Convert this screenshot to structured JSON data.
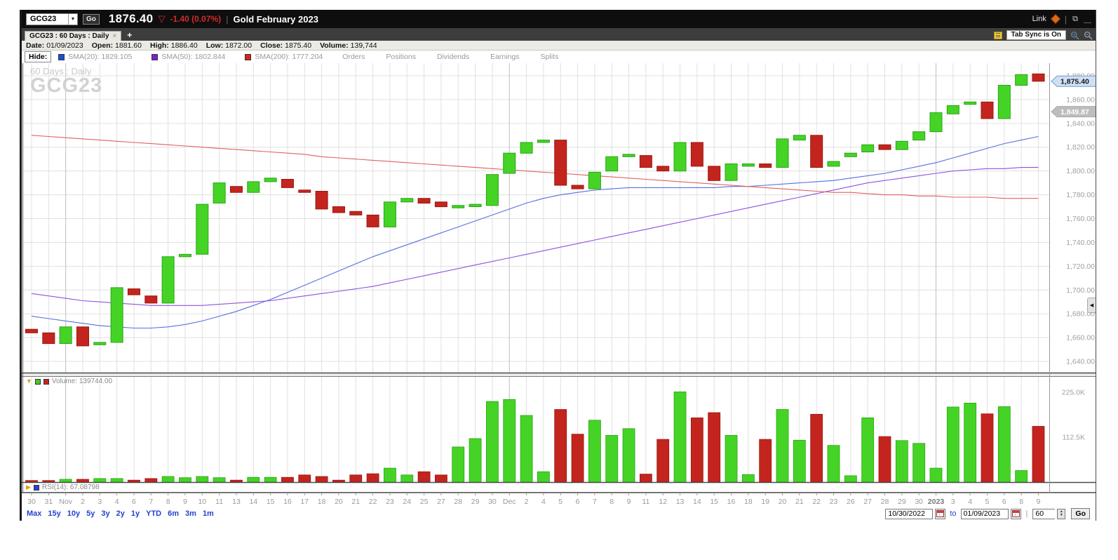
{
  "title_bar": {
    "symbol": "GCG23",
    "go_label": "Go",
    "price": "1876.40",
    "down_glyph": "▽",
    "change": "-1.40 (0.07%)",
    "name": "Gold February 2023",
    "link_label": "Link"
  },
  "tab_bar": {
    "tab_label": "GCG23 : 60  Days : Daily",
    "close_glyph": "×",
    "add_label": "+",
    "sync_label": "Tab Sync is On"
  },
  "info_bar": {
    "items": [
      {
        "label": "Date:",
        "value": "01/09/2023"
      },
      {
        "label": "Open:",
        "value": "1881.60"
      },
      {
        "label": "High:",
        "value": "1886.40"
      },
      {
        "label": "Low:",
        "value": "1872.00"
      },
      {
        "label": "Close:",
        "value": "1875.40"
      },
      {
        "label": "Volume:",
        "value": "139,744"
      }
    ]
  },
  "indicator_bar": {
    "hide_label": "Hide:",
    "smas": [
      {
        "label": "SMA(20): 1829.105",
        "color": "#1e4ed8"
      },
      {
        "label": "SMA(50): 1802.844",
        "color": "#7d1fd8"
      },
      {
        "label": "SMA(200): 1777.204",
        "color": "#dd2211"
      }
    ],
    "extra_items": [
      "Orders",
      "Positions",
      "Dividends",
      "Earnings",
      "Splits"
    ]
  },
  "watermark": {
    "line1": "60  Days : Daily",
    "line2": "GCG23"
  },
  "panes": {
    "volume_header": "Volume: 139744.00",
    "rsi_header": "RSI(14): 67.08798",
    "volume_collapse_glyph": "▼",
    "rsi_expand_glyph": "▶",
    "axis_handle_glyph": "◀"
  },
  "chart_data": {
    "type": "candlestick",
    "title": "GCG23 Gold February 2023, 60 Days Daily",
    "categories": [
      "30",
      "31",
      "Nov",
      "2",
      "3",
      "4",
      "6",
      "7",
      "8",
      "9",
      "10",
      "11",
      "13",
      "14",
      "15",
      "16",
      "17",
      "18",
      "20",
      "21",
      "22",
      "23",
      "24",
      "25",
      "27",
      "28",
      "29",
      "30",
      "Dec",
      "2",
      "4",
      "5",
      "6",
      "7",
      "8",
      "9",
      "11",
      "12",
      "13",
      "14",
      "15",
      "16",
      "18",
      "19",
      "20",
      "21",
      "22",
      "23",
      "26",
      "27",
      "28",
      "29",
      "30",
      "2023",
      "3",
      "4",
      "5",
      "6",
      "8",
      "9"
    ],
    "open": [
      1667,
      1664,
      1655,
      1669,
      1654,
      1656,
      1701,
      1695,
      1689,
      1728,
      1730,
      1773,
      1787,
      1782,
      1791,
      1793,
      1784,
      1783,
      1770,
      1766,
      1763,
      1753,
      1774,
      1777,
      1774,
      1769,
      1770,
      1771,
      1798,
      1815,
      1824,
      1826,
      1788,
      1785,
      1800,
      1812,
      1813,
      1804,
      1800,
      1824,
      1804,
      1792,
      1804,
      1806,
      1803,
      1826,
      1830,
      1804,
      1812,
      1816,
      1822,
      1818,
      1826,
      1833,
      1848,
      1856,
      1858,
      1844,
      1872,
      1881.6
    ],
    "close": [
      1664,
      1655,
      1669,
      1653,
      1656,
      1702,
      1696,
      1689,
      1728,
      1730,
      1772,
      1790,
      1782,
      1791,
      1794,
      1786,
      1782,
      1768,
      1765,
      1763,
      1753,
      1774,
      1777,
      1773,
      1770,
      1771,
      1772,
      1797,
      1815,
      1824,
      1826,
      1788,
      1785,
      1799,
      1812,
      1814,
      1803,
      1800,
      1824,
      1804,
      1792,
      1806,
      1806,
      1803,
      1827,
      1830,
      1803,
      1808,
      1815,
      1822,
      1818,
      1825,
      1833,
      1849,
      1855,
      1858,
      1844,
      1872,
      1881,
      1875.4
    ],
    "volume_k": [
      4,
      4,
      7,
      7,
      9,
      9,
      5,
      9,
      14,
      11,
      14,
      11,
      5,
      12,
      12,
      12,
      18,
      14,
      5,
      18,
      21,
      35,
      18,
      26,
      18,
      88,
      109,
      202,
      207,
      167,
      26,
      182,
      120,
      155,
      117,
      134,
      20,
      107,
      226,
      161,
      174,
      117,
      19,
      107,
      182,
      105,
      170,
      92,
      16,
      161,
      114,
      104,
      97,
      35,
      188,
      198,
      171,
      189,
      29,
      139.744
    ],
    "indicators": [
      {
        "name": "SMA(20)",
        "value": 1829.105,
        "color": "#5570e0",
        "values": [
          1678,
          1676,
          1674,
          1672,
          1670,
          1669,
          1668,
          1668,
          1669,
          1671,
          1674,
          1678,
          1682,
          1687,
          1692,
          1698,
          1704,
          1710,
          1716,
          1722,
          1728,
          1733,
          1738,
          1743,
          1748,
          1753,
          1758,
          1763,
          1768,
          1773,
          1777,
          1780,
          1782,
          1784,
          1785,
          1786,
          1786,
          1786,
          1786,
          1786,
          1786,
          1787,
          1787,
          1788,
          1789,
          1790,
          1791,
          1792,
          1794,
          1796,
          1798,
          1801,
          1804,
          1807,
          1811,
          1815,
          1819,
          1823,
          1826,
          1829
        ]
      },
      {
        "name": "SMA(50)",
        "value": 1802.844,
        "color": "#8e52e0",
        "values": [
          1697,
          1695,
          1693,
          1691,
          1690,
          1689,
          1688,
          1687,
          1687,
          1687,
          1687,
          1688,
          1689,
          1690,
          1691,
          1693,
          1695,
          1697,
          1699,
          1701,
          1703,
          1706,
          1709,
          1712,
          1715,
          1718,
          1721,
          1724,
          1727,
          1730,
          1733,
          1736,
          1739,
          1742,
          1745,
          1748,
          1751,
          1754,
          1757,
          1760,
          1763,
          1766,
          1769,
          1772,
          1775,
          1778,
          1781,
          1784,
          1787,
          1790,
          1792,
          1794,
          1796,
          1798,
          1800,
          1801,
          1802,
          1802,
          1803,
          1803
        ]
      },
      {
        "name": "SMA(200)",
        "value": 1777.204,
        "color": "#e06060",
        "values": [
          1830,
          1829,
          1828,
          1827,
          1826,
          1825,
          1824,
          1823,
          1822,
          1821,
          1820,
          1819,
          1818,
          1817,
          1816,
          1815,
          1814,
          1812,
          1811,
          1810,
          1809,
          1808,
          1807,
          1806,
          1805,
          1804,
          1803,
          1802,
          1801,
          1800,
          1799,
          1798,
          1797,
          1796,
          1795,
          1794,
          1793,
          1792,
          1791,
          1790,
          1789,
          1788,
          1787,
          1786,
          1785,
          1784,
          1783,
          1782,
          1782,
          1781,
          1780,
          1780,
          1779,
          1779,
          1778,
          1778,
          1778,
          1777,
          1777,
          1777
        ]
      }
    ],
    "y_axis": {
      "tick_labels": [
        "1,880.00",
        "1,860.00",
        "1,840.00",
        "1,820.00",
        "1,800.00",
        "1,780.00",
        "1,760.00",
        "1,740.00",
        "1,720.00",
        "1,700.00",
        "1,680.00",
        "1,660.00",
        "1,640.00"
      ],
      "tick_values": [
        1880,
        1860,
        1840,
        1820,
        1800,
        1780,
        1760,
        1740,
        1720,
        1700,
        1680,
        1660,
        1640
      ]
    },
    "volume_axis": {
      "tick_labels": [
        "225.0K",
        "112.5K"
      ],
      "tick_values": [
        225,
        112.5
      ]
    },
    "price_tags": [
      {
        "text": "1,875.40",
        "value": 1875.4,
        "style": "current",
        "bg": "#cfe0f4",
        "border": "#6f9bd2",
        "fg": "#1a1a1a"
      },
      {
        "text": "1,849.87",
        "value": 1849.87,
        "style": "gray",
        "bg": "#bdbdbd",
        "border": "#ababab",
        "fg": "#ffffff"
      }
    ],
    "colors": {
      "up": "#45d426",
      "up_border": "#28a512",
      "down": "#c3251e",
      "down_border": "#9c1710",
      "grid": "#e0e0e0",
      "grid_dark": "#bfbfbf",
      "axis_text": "#a0a0a0"
    },
    "bold_category": "2023"
  },
  "toolbar": {
    "ranges": [
      "Max",
      "15y",
      "10y",
      "5y",
      "3y",
      "2y",
      "1y",
      "YTD",
      "6m",
      "3m",
      "1m"
    ],
    "from": "10/30/2022",
    "to_label": "to",
    "to_value": "01/09/2023",
    "bars": "60",
    "go_label": "Go"
  }
}
